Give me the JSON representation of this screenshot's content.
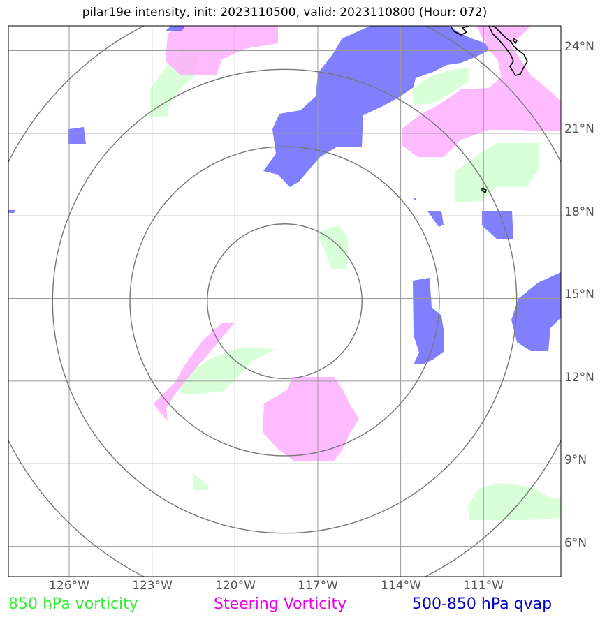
{
  "title": "pilar19e intensity, init: 2023110500, valid: 2023110800 (Hour: 072)",
  "longitude_labels": [
    "126°W",
    "123°W",
    "120°W",
    "117°W",
    "114°W",
    "111°W"
  ],
  "latitude_labels": [
    "24°N",
    "21°N",
    "18°N",
    "15°N",
    "12°N",
    "9°N",
    "6°N"
  ],
  "legend": [
    {
      "label": "850 hPa vorticity",
      "color": "#33ee33"
    },
    {
      "label": "Steering Vorticity",
      "color": "#ee00ee"
    },
    {
      "label": "500-850 hPa qvap",
      "color": "#0000cc"
    }
  ],
  "colors": {
    "vorticity_850": "#ccffcc",
    "steering_vorticity": "#ffaaff",
    "qvap": "#5555ff",
    "grid": "#999999",
    "range_rings": "#777777",
    "coastline": "#000000"
  },
  "map": {
    "extent_lon": [
      -128.2,
      -108.2
    ],
    "extent_lat": [
      4.9,
      24.9
    ],
    "storm_center": {
      "lon": -118.2,
      "lat": 14.9
    },
    "range_rings_deg": [
      2.8,
      5.6,
      8.4,
      11.2
    ]
  }
}
